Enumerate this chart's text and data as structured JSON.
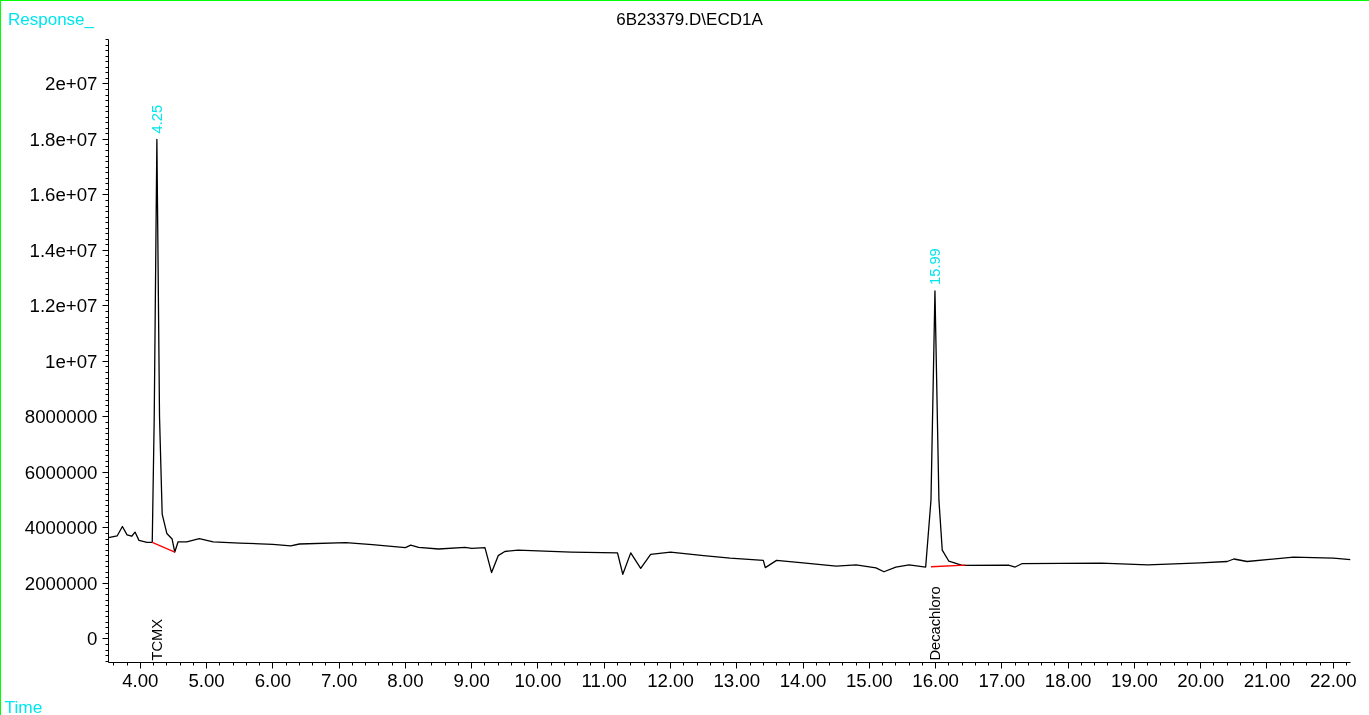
{
  "chart_data": {
    "type": "line",
    "title": "6B23379.D\\ECD1A",
    "xlabel": "Time",
    "ylabel": "Response_",
    "xlim": [
      3.52,
      22.26
    ],
    "ylim": [
      -850000,
      21600000
    ],
    "xticks": [
      {
        "value": 4,
        "label": "4.00"
      },
      {
        "value": 5,
        "label": "5.00"
      },
      {
        "value": 6,
        "label": "6.00"
      },
      {
        "value": 7,
        "label": "7.00"
      },
      {
        "value": 8,
        "label": "8.00"
      },
      {
        "value": 9,
        "label": "9.00"
      },
      {
        "value": 10,
        "label": "10.00"
      },
      {
        "value": 11,
        "label": "11.00"
      },
      {
        "value": 12,
        "label": "12.00"
      },
      {
        "value": 13,
        "label": "13.00"
      },
      {
        "value": 14,
        "label": "14.00"
      },
      {
        "value": 15,
        "label": "15.00"
      },
      {
        "value": 16,
        "label": "16.00"
      },
      {
        "value": 17,
        "label": "17.00"
      },
      {
        "value": 18,
        "label": "18.00"
      },
      {
        "value": 19,
        "label": "19.00"
      },
      {
        "value": 20,
        "label": "20.00"
      },
      {
        "value": 21,
        "label": "21.00"
      },
      {
        "value": 22,
        "label": "22.00"
      }
    ],
    "yticks": [
      0,
      2000000,
      4000000,
      6000000,
      8000000,
      {
        "value": 10000000,
        "label": "1e+07"
      },
      {
        "value": 12000000,
        "label": "1.2e+07"
      },
      {
        "value": 14000000,
        "label": "1.4e+07"
      },
      {
        "value": 16000000,
        "label": "1.6e+07"
      },
      {
        "value": 18000000,
        "label": "1.8e+07"
      },
      {
        "value": 20000000,
        "label": "2e+07"
      }
    ],
    "grid": false,
    "marker": "none",
    "line_style": "solid",
    "series": [
      {
        "color": "#000000",
        "x": [
          3.52,
          3.65,
          3.73,
          3.8,
          3.87,
          3.92,
          3.98,
          4.1,
          4.18,
          4.21,
          4.25,
          4.29,
          4.33,
          4.4,
          4.48,
          4.52,
          4.57,
          4.7,
          4.89,
          5.1,
          5.5,
          6.0,
          6.27,
          6.4,
          7.1,
          7.5,
          8.0,
          8.08,
          8.2,
          8.5,
          8.9,
          9.0,
          9.2,
          9.3,
          9.4,
          9.5,
          9.7,
          10.5,
          11.2,
          11.28,
          11.4,
          11.55,
          11.7,
          12.0,
          12.5,
          12.9,
          13.4,
          13.43,
          13.6,
          14.0,
          14.5,
          14.8,
          15.1,
          15.22,
          15.4,
          15.6,
          15.85,
          15.93,
          15.99,
          16.05,
          16.1,
          16.2,
          16.4,
          17.1,
          17.2,
          17.3,
          18.5,
          19.2,
          20.0,
          20.4,
          20.5,
          20.7,
          21.4,
          22.0,
          22.26
        ],
        "values": [
          3650000,
          3710000,
          4050000,
          3750000,
          3700000,
          3850000,
          3550000,
          3480000,
          3480000,
          8000000,
          18000000,
          8000000,
          4500000,
          3800000,
          3600000,
          3130000,
          3500000,
          3500000,
          3610000,
          3500000,
          3450000,
          3410000,
          3350000,
          3420000,
          3470000,
          3400000,
          3290000,
          3380000,
          3300000,
          3240000,
          3300000,
          3260000,
          3290000,
          2390000,
          3000000,
          3150000,
          3200000,
          3130000,
          3100000,
          2330000,
          3100000,
          2540000,
          3050000,
          3130000,
          3000000,
          2910000,
          2830000,
          2570000,
          2830000,
          2740000,
          2620000,
          2670000,
          2560000,
          2420000,
          2590000,
          2670000,
          2590000,
          5000000,
          12540000,
          5000000,
          3200000,
          2800000,
          2650000,
          2660000,
          2590000,
          2710000,
          2730000,
          2670000,
          2740000,
          2790000,
          2880000,
          2790000,
          2950000,
          2910000,
          2860000
        ]
      },
      {
        "color": "#ff0000",
        "x": [
          4.18,
          4.52
        ],
        "values": [
          3480000,
          3130000
        ]
      },
      {
        "color": "#ff0000",
        "x": [
          15.93,
          16.45
        ],
        "values": [
          2600000,
          2660000
        ]
      }
    ],
    "annotations": [
      {
        "text": "4.25",
        "x": 4.25,
        "y": 18000000
      },
      {
        "text": "15.99",
        "x": 15.99,
        "y": 12540000
      },
      "TCMX",
      "Decachloro"
    ]
  }
}
